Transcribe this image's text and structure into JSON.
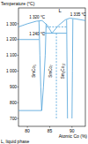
{
  "chart_data": {
    "type": "phase_diagram",
    "y_label": "Temperature (°C)",
    "x_label": "Atomic Co (%)",
    "note": "L, liquid phase",
    "xlim": [
      78,
      93
    ],
    "xticks": [
      80,
      85,
      90
    ],
    "ylim": [
      650,
      1400
    ],
    "yticks": [
      700,
      800,
      900,
      {
        "value": 1000,
        "label": "1 000"
      },
      {
        "value": 1100,
        "label": "1 100"
      },
      {
        "value": 1200,
        "label": "1 200"
      },
      {
        "value": 1300,
        "label": "1 300"
      }
    ],
    "color": "#4a9fd8",
    "lines": [
      {
        "x": [
          78,
          80,
          82,
          83.3,
          84.5,
          85.5,
          87,
          88.5,
          89.5,
          91,
          93
        ],
        "y": [
          1280,
          1300,
          1316,
          1320,
          1290,
          1240,
          1290,
          1325,
          1335,
          1330,
          1320
        ],
        "line_style": "solid"
      },
      {
        "x": [
          78,
          82.6
        ],
        "y": [
          1200,
          1200
        ],
        "line_style": "solid"
      },
      {
        "x": [
          83.6,
          88.8
        ],
        "y": [
          1240,
          1240
        ],
        "line_style": "solid"
      },
      {
        "x": [
          82.6,
          82.8,
          83.0,
          83.2
        ],
        "y": [
          1316,
          1100,
          900,
          750
        ],
        "line_style": "solid"
      },
      {
        "x": [
          84.2,
          84.0,
          83.6,
          83.2
        ],
        "y": [
          1300,
          1100,
          900,
          750
        ],
        "line_style": "solid"
      },
      {
        "x": [
          78,
          83.2
        ],
        "y": [
          750,
          750
        ],
        "line_style": "solid"
      },
      {
        "x": [
          88.8,
          88.9,
          89.0
        ],
        "y": [
          1325,
          1000,
          700
        ],
        "line_style": "solid"
      },
      {
        "x": [
          90.2,
          90.1,
          90.0
        ],
        "y": [
          1330,
          1000,
          700
        ],
        "line_style": "solid"
      },
      {
        "x": [
          86.5,
          86.5
        ],
        "y": [
          1240,
          700
        ],
        "line_style": "dashed"
      },
      {
        "x": [
          84.2,
          88.8
        ],
        "y": [
          1280,
          1280
        ],
        "line_style": "dashed"
      }
    ],
    "annotations": [
      {
        "text": "L",
        "x": 87,
        "y": 1370
      },
      {
        "text": "1 320 °C",
        "x": 80.4,
        "y": 1332
      },
      {
        "text": "1 240 °C",
        "x": 80.4,
        "y": 1225
      },
      {
        "text": "1 335 °C",
        "x": 89.6,
        "y": 1352
      },
      {
        "text": "SmCo₅",
        "x": 81.8,
        "y": 1000,
        "orientation": "vertical"
      },
      {
        "text": "SmCo₇",
        "x": 85.5,
        "y": 1000,
        "orientation": "vertical"
      },
      {
        "text": "Sm₂Co₁₇",
        "x": 88.3,
        "y": 1000,
        "orientation": "vertical"
      }
    ]
  }
}
